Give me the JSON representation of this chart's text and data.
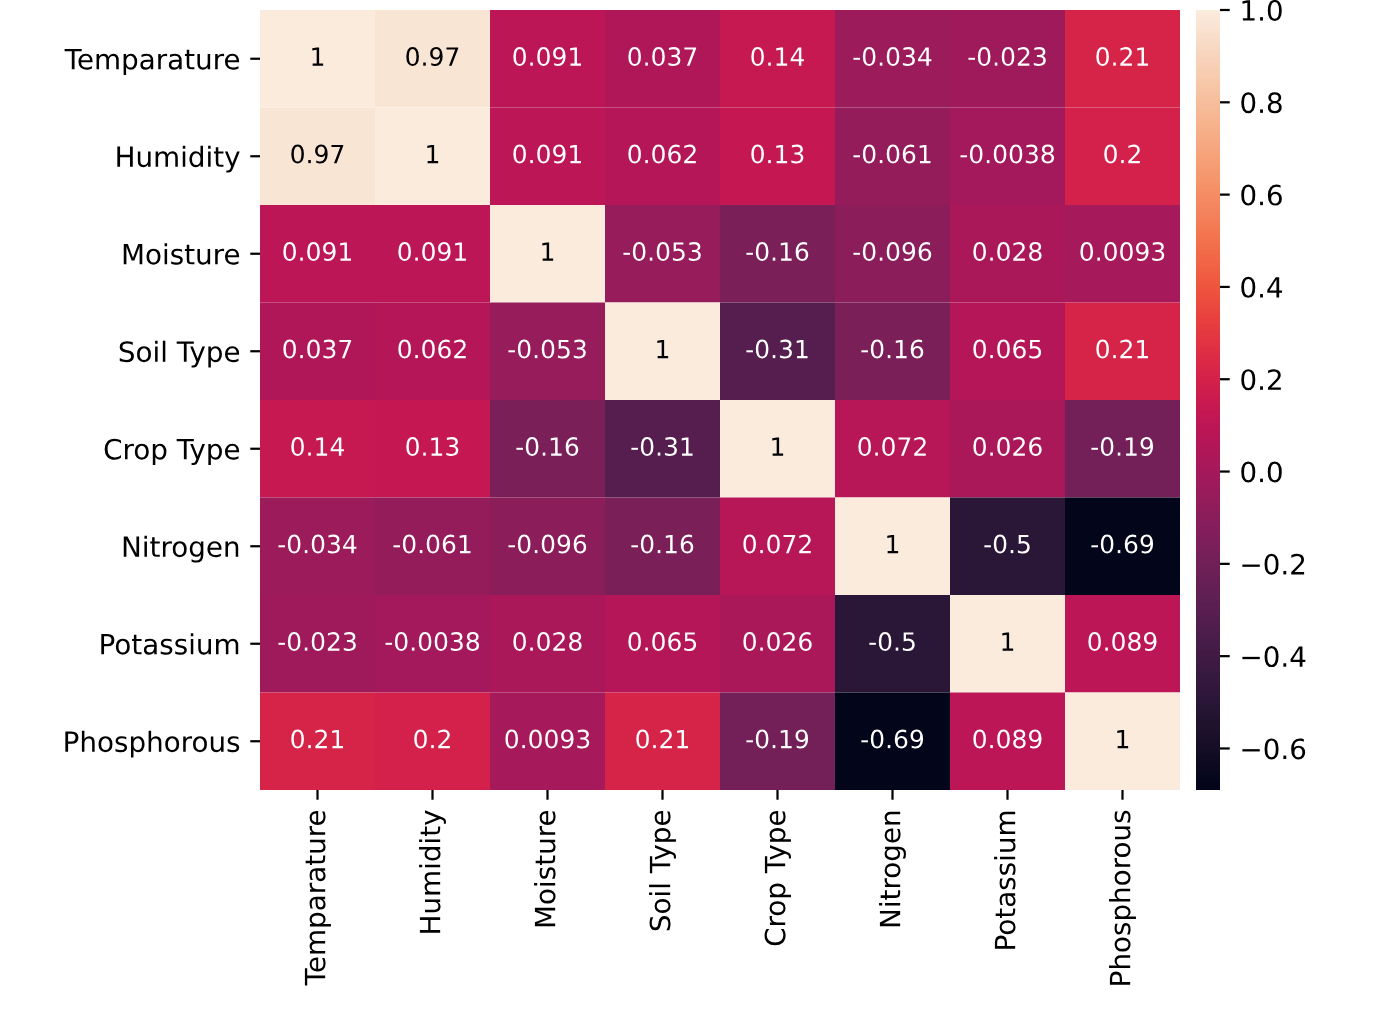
{
  "chart_data": {
    "type": "heatmap",
    "categories": [
      "Temparature",
      "Humidity",
      "Moisture",
      "Soil Type",
      "Crop Type",
      "Nitrogen",
      "Potassium",
      "Phosphorous"
    ],
    "y_categories": [
      "Temparature",
      "Humidity",
      "Moisture",
      "Soil Type",
      "Crop Type",
      "Nitrogen",
      "Potassium",
      "Phosphorous"
    ],
    "cells": [
      [
        1,
        0.97,
        0.091,
        0.037,
        0.14,
        -0.034,
        -0.023,
        0.21
      ],
      [
        0.97,
        1,
        0.091,
        0.062,
        0.13,
        -0.061,
        -0.0038,
        0.2
      ],
      [
        0.091,
        0.091,
        1,
        -0.053,
        -0.16,
        -0.096,
        0.028,
        0.0093
      ],
      [
        0.037,
        0.062,
        -0.053,
        1,
        -0.31,
        -0.16,
        0.065,
        0.21
      ],
      [
        0.14,
        0.13,
        -0.16,
        -0.31,
        1,
        0.072,
        0.026,
        -0.19
      ],
      [
        -0.034,
        -0.061,
        -0.096,
        -0.16,
        0.072,
        1,
        -0.5,
        -0.69
      ],
      [
        -0.023,
        -0.0038,
        0.028,
        0.065,
        0.026,
        -0.5,
        1,
        0.089
      ],
      [
        0.21,
        0.2,
        0.0093,
        0.21,
        -0.19,
        -0.69,
        0.089,
        1
      ]
    ],
    "clim": [
      -0.69,
      1
    ],
    "cticks": [
      {
        "value": 1.0,
        "label": "1.0"
      },
      {
        "value": 0.8,
        "label": "0.8"
      },
      {
        "value": 0.6,
        "label": "0.6"
      },
      {
        "value": 0.4,
        "label": "0.4"
      },
      {
        "value": 0.2,
        "label": "0.2"
      },
      {
        "value": 0.0,
        "label": "0.0"
      },
      {
        "value": -0.2,
        "label": "−0.2"
      },
      {
        "value": -0.4,
        "label": "−0.4"
      },
      {
        "value": -0.6,
        "label": "−0.6"
      }
    ],
    "data_labels": true
  }
}
